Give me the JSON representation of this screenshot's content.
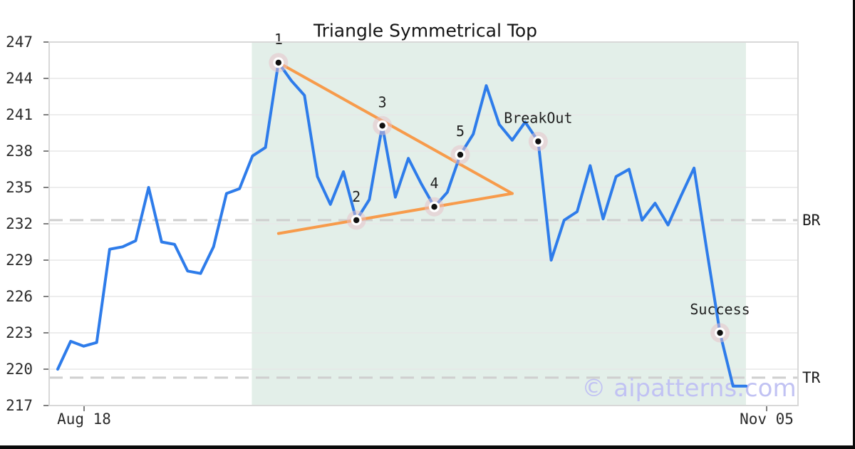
{
  "title": "Triangle Symmetrical Top",
  "watermark": "© aipatterns.com",
  "x_axis": {
    "start_label": "Aug 18",
    "end_label": "Nov 05"
  },
  "y_axis": {
    "ticks": [
      "247",
      "244",
      "241",
      "238",
      "235",
      "232",
      "229",
      "226",
      "223",
      "220",
      "217"
    ]
  },
  "levels": [
    {
      "label": "BR",
      "value": 232.3
    },
    {
      "label": "TR",
      "value": 219.3
    }
  ],
  "colors": {
    "price_line": "#2e7cea",
    "trendline": "#f79b4b",
    "marker_halo": "#e7bfc7",
    "marker_dot": "#111111",
    "shade": "#e3efe9",
    "grid": "#e7e7e7",
    "level_dash": "#cfcfcf",
    "plot_border": "#d8d8d8",
    "watermark": "#c1c2f3",
    "frame_bar": "#0a0a0a"
  },
  "chart_data": {
    "type": "line",
    "title": "Triangle Symmetrical Top",
    "x_tick_labels": [
      "Aug 18",
      "Nov 05"
    ],
    "ylim": [
      217,
      247
    ],
    "y_ticks": [
      217,
      220,
      223,
      226,
      229,
      232,
      235,
      238,
      241,
      244,
      247
    ],
    "grid": "horizontal",
    "legend": "none",
    "series": [
      {
        "name": "price",
        "values": [
          220.0,
          222.3,
          221.9,
          222.2,
          229.9,
          230.1,
          230.6,
          235.0,
          230.5,
          230.3,
          228.1,
          227.9,
          230.1,
          234.5,
          234.9,
          237.6,
          238.3,
          245.3,
          243.8,
          242.6,
          235.9,
          233.6,
          236.3,
          232.3,
          234.0,
          240.1,
          234.2,
          237.4,
          235.3,
          233.4,
          234.6,
          237.7,
          239.4,
          243.4,
          240.2,
          238.9,
          240.4,
          238.8,
          229.0,
          232.3,
          233.0,
          236.8,
          232.4,
          235.9,
          236.5,
          232.3,
          233.7,
          231.9,
          234.3,
          236.6,
          229.7,
          223.0,
          218.6,
          218.6
        ]
      }
    ],
    "annotations": {
      "points": [
        {
          "label": "1",
          "index": 17,
          "value": 245.3
        },
        {
          "label": "2",
          "index": 23,
          "value": 232.3
        },
        {
          "label": "3",
          "index": 25,
          "value": 240.1
        },
        {
          "label": "4",
          "index": 29,
          "value": 233.4
        },
        {
          "label": "5",
          "index": 31,
          "value": 237.7
        },
        {
          "label": "BreakOut",
          "index": 37,
          "value": 238.8
        },
        {
          "label": "Success",
          "index": 51,
          "value": 223.0
        }
      ],
      "upper_trendline": {
        "from": {
          "index": 17,
          "value": 245.3
        },
        "to": {
          "index": 35,
          "value": 234.5
        }
      },
      "lower_trendline": {
        "from": {
          "index": 17,
          "value": 231.2
        },
        "to": {
          "index": 35,
          "value": 234.5
        }
      },
      "breakout_level": 232.3,
      "target_level": 219.3,
      "shaded_region": {
        "start_index": 15,
        "end_index": 53
      }
    }
  }
}
